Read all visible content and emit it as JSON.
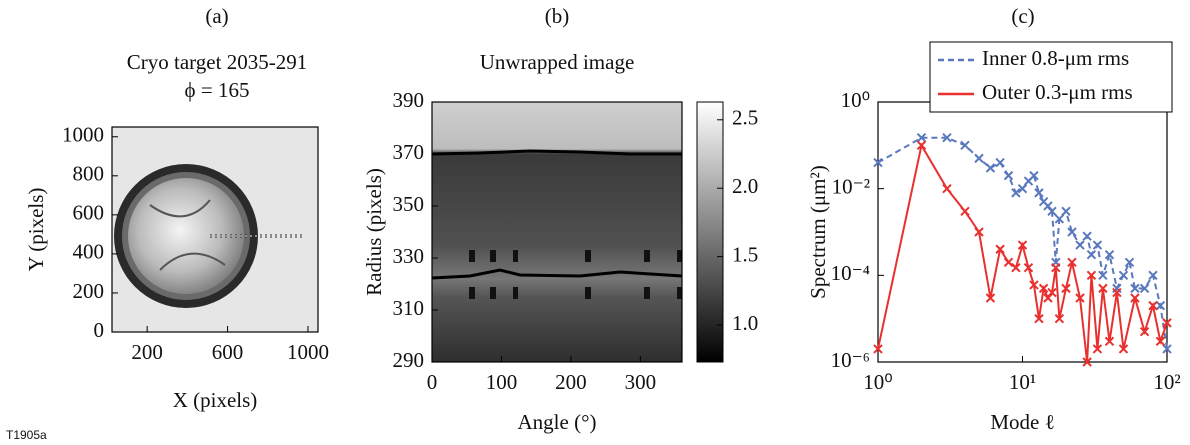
{
  "chart_data": [
    {
      "type": "image",
      "panel": "(a)",
      "title": "Cryo target 2035-291",
      "subtitle": "ϕ = 165",
      "x_label": "X (pixels)",
      "y_label": "Y (pixels)",
      "xlim": [
        25,
        1050
      ],
      "ylim": [
        0,
        1050
      ],
      "xticks": [
        200,
        600,
        1000
      ],
      "yticks": [
        0,
        200,
        400,
        600,
        800,
        1000
      ]
    },
    {
      "type": "heatmap",
      "panel": "(b)",
      "title": "Unwrapped image",
      "x_label": "Angle (°)",
      "y_label": "Radius (pixels)",
      "xlim": [
        0,
        360
      ],
      "ylim": [
        290,
        390
      ],
      "xticks": [
        0,
        100,
        200,
        300
      ],
      "yticks": [
        290,
        310,
        330,
        350,
        370,
        390
      ],
      "colorbar": {
        "lim": [
          0.73,
          2.63
        ],
        "ticks": [
          {
            "value": 1.0,
            "label": "1.0"
          },
          1.5,
          {
            "value": 2.0,
            "label": "2.0"
          },
          2.5
        ]
      }
    },
    {
      "type": "line",
      "panel": "(c)",
      "x_label": "Mode ℓ",
      "y_label": "Spectrum (μm²)",
      "xscale": "log",
      "yscale": "log",
      "xlim": [
        1,
        100
      ],
      "ylim": [
        1e-06,
        1
      ],
      "xticks": [
        {
          "value": 1,
          "label": "10⁰"
        },
        {
          "value": 10,
          "label": "10¹"
        },
        {
          "value": 100,
          "label": "10²"
        }
      ],
      "yticks": [
        {
          "value": 1e-06,
          "label": "10⁻⁶"
        },
        {
          "value": 0.0001,
          "label": "10⁻⁴"
        },
        {
          "value": 0.01,
          "label": "10⁻²"
        },
        {
          "value": 1,
          "label": "10⁰"
        }
      ],
      "legend": "upper right",
      "series": [
        {
          "name": "Inner 0.8-μm rms",
          "color": "#5a78bd",
          "linestyle": "dashed",
          "x": [
            1,
            2,
            3,
            4,
            5,
            6,
            7,
            8,
            9,
            10,
            11,
            12,
            13,
            14,
            15,
            16,
            17,
            18,
            20,
            22,
            25,
            28,
            30,
            33,
            36,
            40,
            45,
            50,
            55,
            60,
            70,
            80,
            90,
            100
          ],
          "values": [
            0.04,
            0.15,
            0.15,
            0.1,
            0.05,
            0.03,
            0.04,
            0.02,
            0.008,
            0.01,
            0.015,
            0.02,
            0.008,
            0.005,
            0.004,
            0.003,
            0.0002,
            0.002,
            0.003,
            0.001,
            0.0005,
            0.0008,
            0.0003,
            0.0005,
            0.0001,
            0.0003,
            5e-05,
            0.0001,
            0.0002,
            5e-05,
            5e-05,
            0.0001,
            2e-05,
            2e-06
          ]
        },
        {
          "name": "Outer 0.3-μm rms",
          "color": "#e8302e",
          "linestyle": "solid",
          "x": [
            1,
            2,
            3,
            4,
            5,
            6,
            7,
            8,
            9,
            10,
            11,
            12,
            13,
            14,
            15,
            16,
            17,
            18,
            20,
            22,
            25,
            28,
            30,
            33,
            36,
            40,
            45,
            50,
            60,
            70,
            80,
            90,
            100
          ],
          "values": [
            2e-06,
            0.1,
            0.01,
            0.003,
            0.001,
            3e-05,
            0.0004,
            0.0002,
            0.00015,
            0.0005,
            0.00015,
            6e-05,
            1e-05,
            5e-05,
            3e-05,
            4e-05,
            0.00015,
            1e-05,
            5e-05,
            0.0002,
            3e-05,
            1e-06,
            0.0001,
            2e-06,
            5e-05,
            3e-06,
            4e-05,
            2e-06,
            3e-05,
            5e-06,
            2e-05,
            3e-06,
            8e-06
          ]
        }
      ]
    }
  ],
  "footer": "T1905a"
}
